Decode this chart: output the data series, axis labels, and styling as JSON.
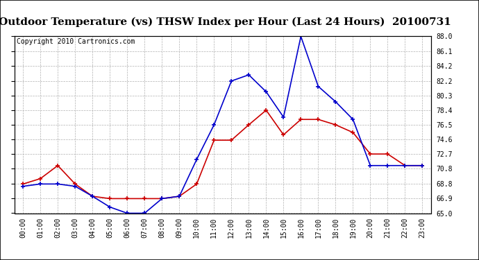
{
  "title": "Outdoor Temperature (vs) THSW Index per Hour (Last 24 Hours)  20100731",
  "copyright": "Copyright 2010 Cartronics.com",
  "hours": [
    "00:00",
    "01:00",
    "02:00",
    "03:00",
    "04:00",
    "05:00",
    "06:00",
    "07:00",
    "08:00",
    "09:00",
    "10:00",
    "11:00",
    "12:00",
    "13:00",
    "14:00",
    "15:00",
    "16:00",
    "17:00",
    "18:00",
    "19:00",
    "20:00",
    "21:00",
    "22:00",
    "23:00"
  ],
  "temp": [
    68.8,
    69.5,
    71.2,
    68.8,
    67.2,
    66.9,
    66.9,
    66.9,
    66.9,
    67.2,
    68.8,
    74.5,
    74.5,
    76.5,
    78.4,
    75.2,
    77.2,
    77.2,
    76.5,
    75.5,
    72.7,
    72.7,
    71.2,
    71.2
  ],
  "thsw": [
    68.5,
    68.8,
    68.8,
    68.5,
    67.2,
    65.8,
    65.0,
    65.0,
    66.9,
    67.2,
    72.0,
    76.5,
    82.2,
    83.0,
    80.8,
    77.5,
    88.0,
    81.5,
    79.5,
    77.2,
    71.2,
    71.2,
    71.2,
    71.2
  ],
  "temp_color": "#cc0000",
  "thsw_color": "#0000cc",
  "bg_color": "#ffffff",
  "grid_color": "#b0b0b0",
  "ylim": [
    65.0,
    88.0
  ],
  "yticks": [
    65.0,
    66.9,
    68.8,
    70.8,
    72.7,
    74.6,
    76.5,
    78.4,
    80.3,
    82.2,
    84.2,
    86.1,
    88.0
  ],
  "title_fontsize": 11,
  "copyright_fontsize": 7,
  "tick_fontsize": 7,
  "marker": "+",
  "marker_size": 4,
  "marker_edge_width": 1.2,
  "line_width": 1.2
}
